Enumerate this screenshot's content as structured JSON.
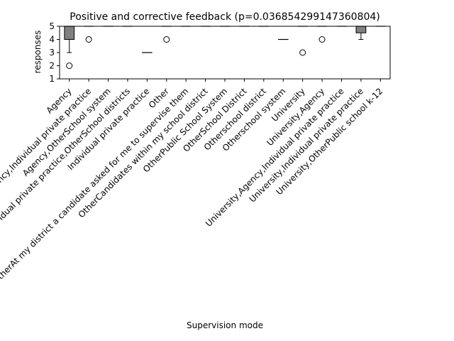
{
  "chart_data": {
    "type": "box",
    "title": "Positive and corrective feedback (p=0.036854299147360804)",
    "xlabel": "Supervision mode",
    "ylabel": "responses",
    "ylim": [
      1,
      5
    ],
    "yticks": [
      1,
      2,
      3,
      4,
      5
    ],
    "grid": false,
    "colors": {
      "box_fill": "#808080",
      "median": "#000000",
      "outline": "#000000"
    },
    "categories": [
      "Agency",
      "Agency,Individual private practice",
      "Agency,OtherSchool system",
      "Agency,Individual private practice,OtherSchool districts",
      "Individual private practice",
      "Other",
      "OtherAt my district a candidate asked for me to supervise them",
      "OtherCandidates within my school district",
      "OtherPublic School System",
      "OtherSchool District",
      "Otherschool district",
      "Otherschool system",
      "University",
      "University,Agency",
      "University,Agency,Individual private practice",
      "University,Individual private practice",
      "University,OtherPublic school k-12"
    ],
    "boxes": [
      {
        "q1": 4,
        "median": 5,
        "q3": 5,
        "whisker_low": 3,
        "whisker_high": 5,
        "fliers": [
          2
        ]
      },
      {
        "q1": 5,
        "median": 5,
        "q3": 5,
        "whisker_low": 5,
        "whisker_high": 5,
        "fliers": [
          4
        ]
      },
      {
        "q1": 5,
        "median": 5,
        "q3": 5,
        "whisker_low": 5,
        "whisker_high": 5,
        "fliers": []
      },
      {
        "q1": 5,
        "median": 5,
        "q3": 5,
        "whisker_low": 5,
        "whisker_high": 5,
        "fliers": []
      },
      {
        "q1": 3,
        "median": 3,
        "q3": 3,
        "whisker_low": 3,
        "whisker_high": 3,
        "fliers": []
      },
      {
        "q1": 5,
        "median": 5,
        "q3": 5,
        "whisker_low": 5,
        "whisker_high": 5,
        "fliers": [
          4
        ]
      },
      {
        "q1": 5,
        "median": 5,
        "q3": 5,
        "whisker_low": 5,
        "whisker_high": 5,
        "fliers": []
      },
      {
        "q1": 5,
        "median": 5,
        "q3": 5,
        "whisker_low": 5,
        "whisker_high": 5,
        "fliers": []
      },
      {
        "q1": 5,
        "median": 5,
        "q3": 5,
        "whisker_low": 5,
        "whisker_high": 5,
        "fliers": []
      },
      {
        "q1": 5,
        "median": 5,
        "q3": 5,
        "whisker_low": 5,
        "whisker_high": 5,
        "fliers": []
      },
      {
        "q1": 5,
        "median": 5,
        "q3": 5,
        "whisker_low": 5,
        "whisker_high": 5,
        "fliers": []
      },
      {
        "q1": 4,
        "median": 4,
        "q3": 4,
        "whisker_low": 4,
        "whisker_high": 4,
        "fliers": []
      },
      {
        "q1": 5,
        "median": 5,
        "q3": 5,
        "whisker_low": 5,
        "whisker_high": 5,
        "fliers": [
          3
        ]
      },
      {
        "q1": 5,
        "median": 5,
        "q3": 5,
        "whisker_low": 5,
        "whisker_high": 5,
        "fliers": [
          4
        ]
      },
      {
        "q1": 5,
        "median": 5,
        "q3": 5,
        "whisker_low": 5,
        "whisker_high": 5,
        "fliers": []
      },
      {
        "q1": 4.5,
        "median": 5,
        "q3": 5,
        "whisker_low": 4,
        "whisker_high": 5,
        "fliers": []
      },
      {
        "q1": 5,
        "median": 5,
        "q3": 5,
        "whisker_low": 5,
        "whisker_high": 5,
        "fliers": []
      }
    ]
  }
}
